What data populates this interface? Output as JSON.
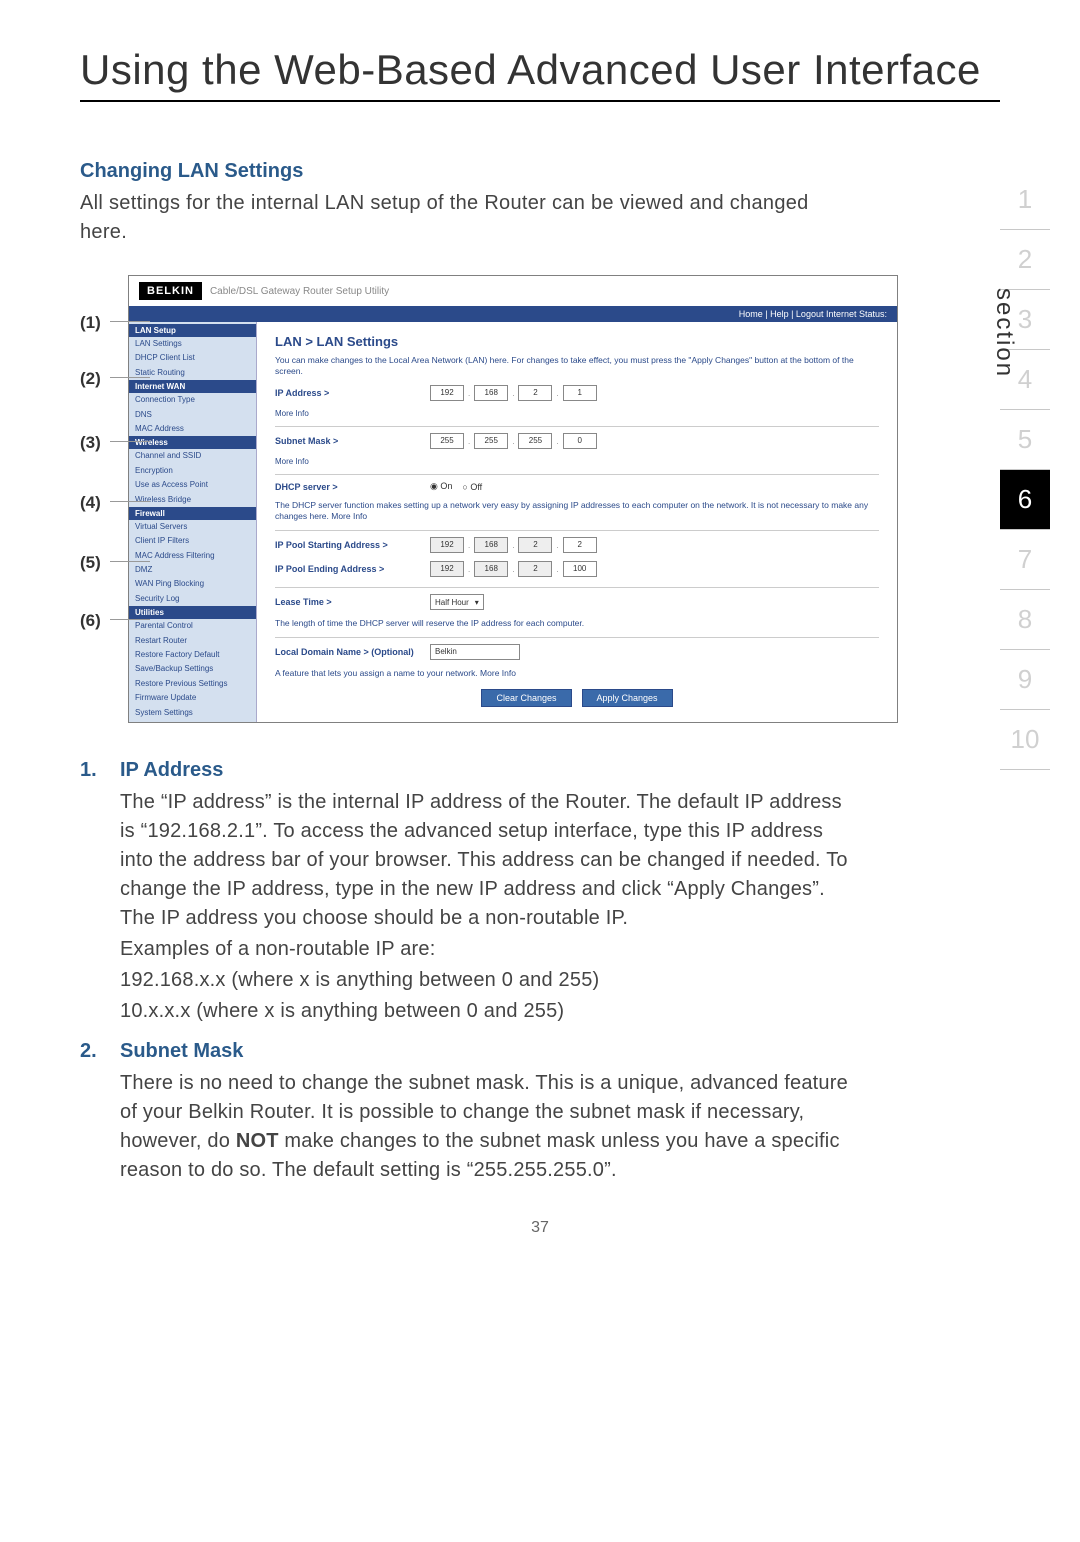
{
  "page": {
    "title": "Using the Web-Based Advanced User Interface",
    "page_number": "37"
  },
  "heading": "Changing LAN Settings",
  "intro": "All settings for the internal LAN setup of the Router can be viewed and changed here.",
  "callouts": [
    "(1)",
    "(2)",
    "(3)",
    "(4)",
    "(5)",
    "(6)"
  ],
  "router": {
    "logo": "BELKIN",
    "tagline": "Cable/DSL Gateway Router Setup Utility",
    "bar": "Home | Help | Logout    Internet Status:",
    "nav": {
      "groups": [
        {
          "head": "LAN Setup",
          "items": [
            "LAN Settings",
            "DHCP Client List",
            "Static Routing"
          ]
        },
        {
          "head": "Internet WAN",
          "items": [
            "Connection Type",
            "DNS",
            "MAC Address"
          ]
        },
        {
          "head": "Wireless",
          "items": [
            "Channel and SSID",
            "Encryption",
            "Use as Access Point",
            "Wireless Bridge"
          ]
        },
        {
          "head": "Firewall",
          "items": [
            "Virtual Servers",
            "Client IP Filters",
            "MAC Address Filtering",
            "DMZ",
            "WAN Ping Blocking",
            "Security Log"
          ]
        },
        {
          "head": "Utilities",
          "items": [
            "Parental Control",
            "Restart Router",
            "Restore Factory Default",
            "Save/Backup Settings",
            "Restore Previous Settings",
            "Firmware Update",
            "System Settings"
          ]
        }
      ]
    },
    "main": {
      "title": "LAN > LAN Settings",
      "desc": "You can make changes to the Local Area Network (LAN) here. For changes to take effect, you must press the \"Apply Changes\" button at the bottom of the screen.",
      "ip_label": "IP Address >",
      "ip": [
        "192",
        "168",
        "2",
        "1"
      ],
      "more": "More Info",
      "subnet_label": "Subnet Mask >",
      "subnet": [
        "255",
        "255",
        "255",
        "0"
      ],
      "dhcp_label": "DHCP server >",
      "dhcp_on": "On",
      "dhcp_off": "Off",
      "dhcp_desc": "The DHCP server function makes setting up a network very easy by assigning IP addresses to each computer on the network. It is not necessary to make any changes here. More Info",
      "pool_start_label": "IP Pool Starting Address >",
      "pool_start": [
        "192",
        "168",
        "2",
        "2"
      ],
      "pool_end_label": "IP Pool Ending Address >",
      "pool_end": [
        "192",
        "168",
        "2",
        "100"
      ],
      "lease_label": "Lease Time >",
      "lease_value": "Half Hour",
      "lease_desc": "The length of time the DHCP server will reserve the IP address for each computer.",
      "domain_label": "Local Domain Name > (Optional)",
      "domain_value": "Belkin",
      "domain_desc": "A feature that lets you assign a name to your network. More Info",
      "btn_clear": "Clear Changes",
      "btn_apply": "Apply Changes"
    }
  },
  "items": [
    {
      "num": "1.",
      "title": "IP Address",
      "body": "The “IP address” is the internal IP address of the Router. The default IP address is “192.168.2.1”. To access the advanced setup interface, type this IP address into the address bar of your browser. This address can be changed if needed. To change the IP address, type in the new IP address and click “Apply Changes”. The IP address you choose should be a non-routable IP.",
      "extra1": "Examples of a non-routable IP are:",
      "extra2": "192.168.x.x (where x is anything between 0 and 255)",
      "extra3": "10.x.x.x (where x is anything between 0 and 255)"
    },
    {
      "num": "2.",
      "title": "Subnet Mask",
      "body_pre": "There is no need to change the subnet mask. This is a unique, advanced feature of your Belkin Router. It is possible to change the subnet mask if necessary, however, do ",
      "body_bold": "NOT",
      "body_post": " make changes to the subnet mask unless you have a specific reason to do so. The default setting is “255.255.255.0”."
    }
  ],
  "side": {
    "label": "section",
    "numbers": [
      "1",
      "2",
      "3",
      "4",
      "5",
      "6",
      "7",
      "8",
      "9",
      "10"
    ],
    "active": "6"
  }
}
